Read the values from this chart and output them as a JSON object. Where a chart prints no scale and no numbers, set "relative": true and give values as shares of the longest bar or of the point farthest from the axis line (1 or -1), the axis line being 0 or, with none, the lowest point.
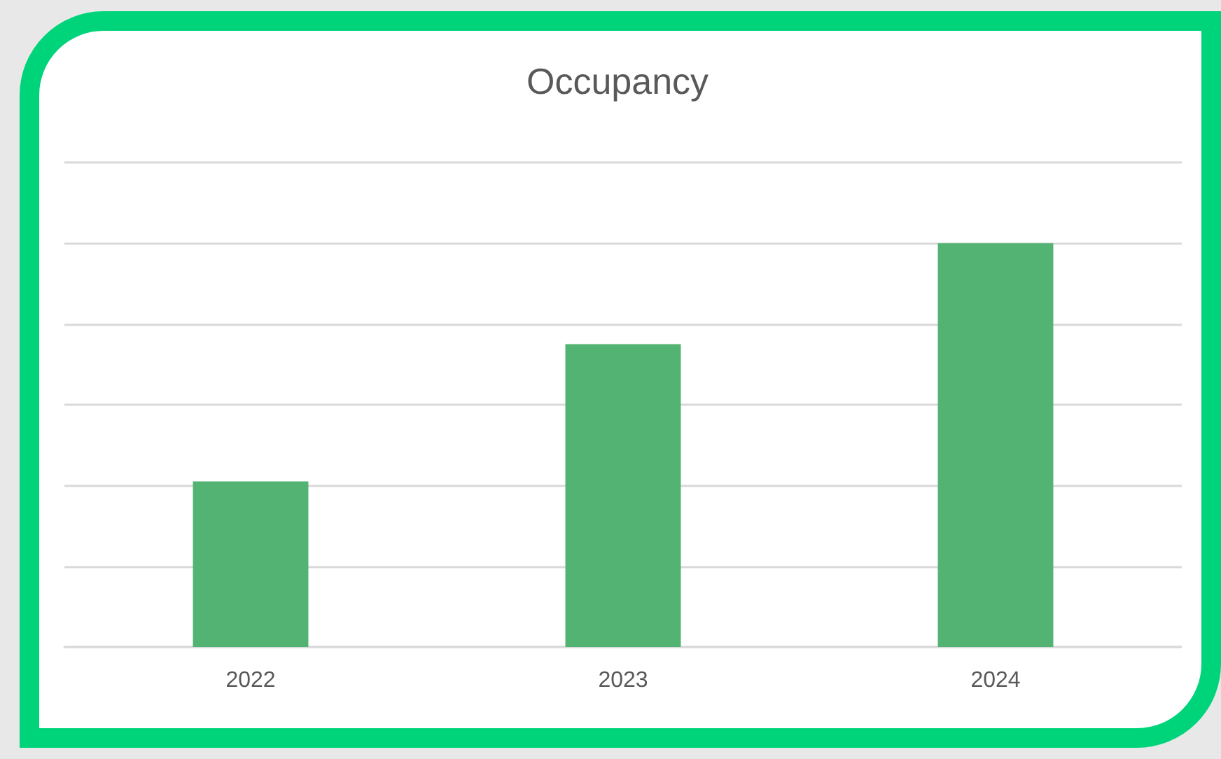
{
  "chart_data": {
    "type": "bar",
    "title": "Occupancy",
    "categories": [
      "2022",
      "2023",
      "2024"
    ],
    "values": [
      0.41,
      0.75,
      1
    ],
    "color": "#52b372",
    "relative": true,
    "grid": "y"
  }
}
